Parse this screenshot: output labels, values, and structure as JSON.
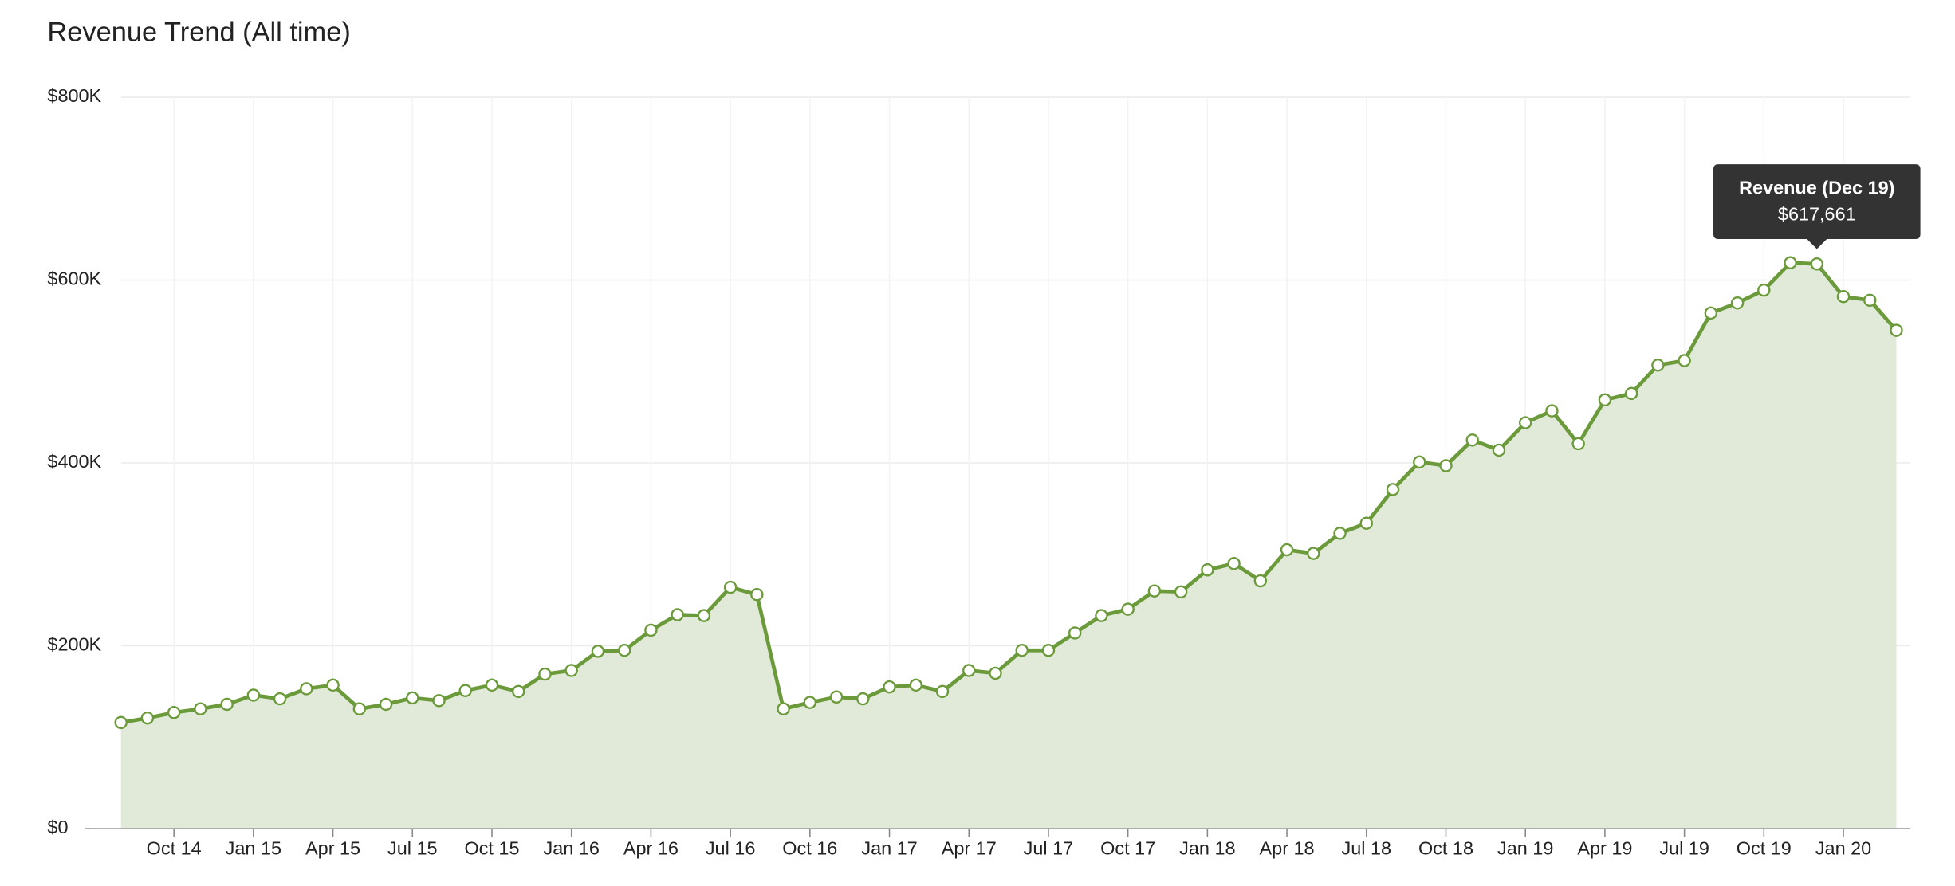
{
  "chart_data": {
    "type": "area-line",
    "title": "Revenue Trend (All time)",
    "categories": [
      null,
      null,
      "Oct 14",
      null,
      null,
      "Jan 15",
      null,
      null,
      "Apr 15",
      null,
      null,
      "Jul 15",
      null,
      null,
      "Oct 15",
      null,
      null,
      "Jan 16",
      null,
      null,
      "Apr 16",
      null,
      null,
      "Jul 16",
      null,
      null,
      "Oct 16",
      null,
      null,
      "Jan 17",
      null,
      null,
      "Apr 17",
      null,
      null,
      "Jul 17",
      null,
      null,
      "Oct 17",
      null,
      null,
      "Jan 18",
      null,
      null,
      "Apr 18",
      null,
      null,
      "Jul 18",
      null,
      null,
      "Oct 18",
      null,
      null,
      "Jan 19",
      null,
      null,
      "Apr 19",
      null,
      null,
      "Jul 19",
      null,
      null,
      "Oct 19",
      null,
      null,
      "Jan 20",
      null,
      null
    ],
    "values": [
      116000,
      121000,
      127000,
      131000,
      136000,
      146000,
      142000,
      153000,
      157000,
      131000,
      136000,
      143000,
      140000,
      151000,
      157000,
      150000,
      169000,
      173000,
      194000,
      195000,
      217000,
      234000,
      233000,
      264000,
      256000,
      131000,
      138000,
      144000,
      142000,
      155000,
      157000,
      150000,
      173000,
      170000,
      195000,
      195000,
      214000,
      233000,
      240000,
      260000,
      259000,
      283000,
      290000,
      271000,
      305000,
      301000,
      323000,
      334000,
      371000,
      401000,
      397000,
      425000,
      414000,
      444000,
      457000,
      421000,
      469000,
      476000,
      507000,
      512000,
      564000,
      575000,
      589000,
      619000,
      617661,
      582000,
      578000,
      545000
    ],
    "color": "#6b9a3a",
    "fill_color": "#e1ead8",
    "ylim": [
      0,
      800000
    ],
    "yticks": [
      {
        "value": 0,
        "label": "$0"
      },
      {
        "value": 200000,
        "label": "$200K"
      },
      {
        "value": 400000,
        "label": "$400K"
      },
      {
        "value": 600000,
        "label": "$600K"
      },
      {
        "value": 800000,
        "label": "$800K"
      }
    ],
    "grid": true,
    "tooltip": {
      "title": "Revenue (Dec 19)",
      "text": "$617,661"
    }
  }
}
